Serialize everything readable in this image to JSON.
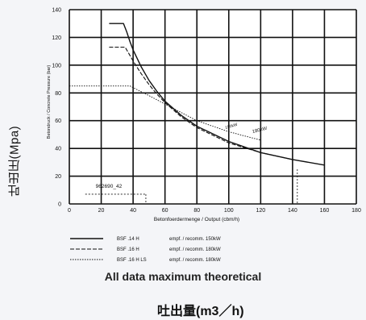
{
  "chart_data": {
    "type": "line",
    "title": "",
    "xlabel": "Betonfoerdermenge / Output (cbm/h)",
    "ylabel": "Betondruck / Concrete Pressure (bar)",
    "xlim": [
      0,
      180
    ],
    "ylim": [
      0,
      140
    ],
    "x_ticks": [
      "0",
      "20",
      "40",
      "60",
      "80",
      "100",
      "120",
      "140",
      "160",
      "180"
    ],
    "y_ticks": [
      "0",
      "20",
      "40",
      "60",
      "80",
      "100",
      "120",
      "140"
    ],
    "grid": true,
    "annotation": "962690_42",
    "series_labels_on_chart": [
      "180kW",
      "150kW"
    ],
    "series": [
      {
        "name": "BSF .14 H",
        "legend_text": "empf. / recomm. 150kW",
        "style": "solid",
        "x": [
          25,
          30,
          32,
          34,
          36,
          38,
          40,
          45,
          50,
          55,
          60,
          70,
          80,
          100,
          120,
          140,
          160
        ],
        "y": [
          130,
          130,
          130,
          130,
          124,
          117,
          111,
          99,
          89,
          81,
          74,
          64,
          56,
          45,
          37,
          32,
          28
        ]
      },
      {
        "name": "BSF .16 H",
        "legend_text": "empf. / recomm. 180kW",
        "style": "dash",
        "x": [
          25,
          30,
          35,
          38,
          40,
          45,
          50,
          55,
          60,
          70,
          80,
          100,
          120,
          140
        ],
        "y": [
          113,
          113,
          113,
          107,
          103,
          94,
          86,
          79,
          73,
          63,
          55,
          44,
          37,
          32
        ]
      },
      {
        "name": "BSF .16 H LS",
        "legend_text": "empf. / recomm. 180kW",
        "style": "dot",
        "x": [
          0,
          20,
          38,
          50,
          60,
          70,
          80,
          100,
          120
        ],
        "y": [
          85,
          85,
          85,
          78,
          72,
          66,
          60,
          52,
          46
        ]
      }
    ]
  },
  "labels": {
    "y_axis_jp": "吐出圧(Mpa)",
    "caption": "All data maximum theoretical",
    "x_axis_jp": "吐出量(m3／h)"
  },
  "colors": {
    "background": "#f4f5f8",
    "plot_background": "#ffffff",
    "ink": "#111111"
  }
}
